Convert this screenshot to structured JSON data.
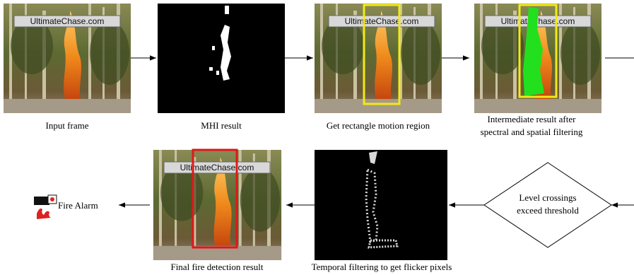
{
  "top_row": [
    {
      "caption": "Input frame",
      "watermark": "UltimateChase.com"
    },
    {
      "caption": "MHI result"
    },
    {
      "caption": "Get rectangle motion region",
      "watermark": "UltimateChase.com"
    },
    {
      "caption_lines": [
        "Intermediate  result after",
        "spectral and spatial filtering"
      ],
      "watermark": "UltimateChase.com"
    }
  ],
  "decision": {
    "lines": [
      "Level crossings",
      "exceed threshold"
    ]
  },
  "bottom_row": [
    {
      "caption": "Temporal filtering to get flicker pixels"
    },
    {
      "caption": "Final fire detection result",
      "watermark": "UltimateChase.com"
    }
  ],
  "alarm": {
    "label": "Fire Alarm"
  }
}
